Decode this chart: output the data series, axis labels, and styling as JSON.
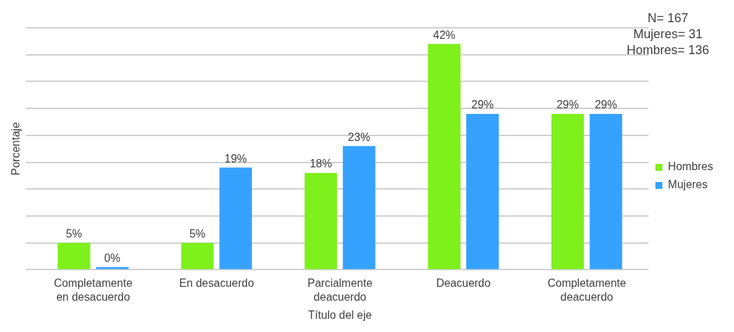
{
  "chart_data": {
    "type": "bar",
    "xlabel": "Título del eje",
    "ylabel": "Porcentaje",
    "categories": [
      "Completamente en desacuerdo",
      "En desacuerdo",
      "Parcialmente deacuerdo",
      "Deacuerdo",
      "Completamente deacuerdo"
    ],
    "series": [
      {
        "name": "Hombres",
        "color": "#7ef01b",
        "values": [
          5,
          5,
          18,
          42,
          29
        ],
        "value_labels": [
          "5%",
          "5%",
          "18%",
          "42%",
          "29%"
        ]
      },
      {
        "name": "Mujeres",
        "color": "#36a2ff",
        "values": [
          0,
          19,
          23,
          29,
          29
        ],
        "value_labels": [
          "0%",
          "19%",
          "23%",
          "29%",
          "29%"
        ]
      }
    ],
    "ylim": [
      0,
      45
    ],
    "yticks": [
      {
        "value": 0,
        "label": null
      },
      {
        "value": 5,
        "label": null
      },
      {
        "value": 10,
        "label": null
      },
      {
        "value": 15,
        "label": null
      },
      {
        "value": 20,
        "label": null
      },
      {
        "value": 25,
        "label": null
      },
      {
        "value": 30,
        "label": null
      },
      {
        "value": 35,
        "label": null
      },
      {
        "value": 40,
        "label": null
      },
      {
        "value": 45,
        "label": null
      }
    ],
    "tick_labels": "x",
    "grid": "y",
    "legend": "right",
    "annotations": [
      "N= 167",
      "Mujeres= 31",
      "Hombres= 136"
    ]
  }
}
